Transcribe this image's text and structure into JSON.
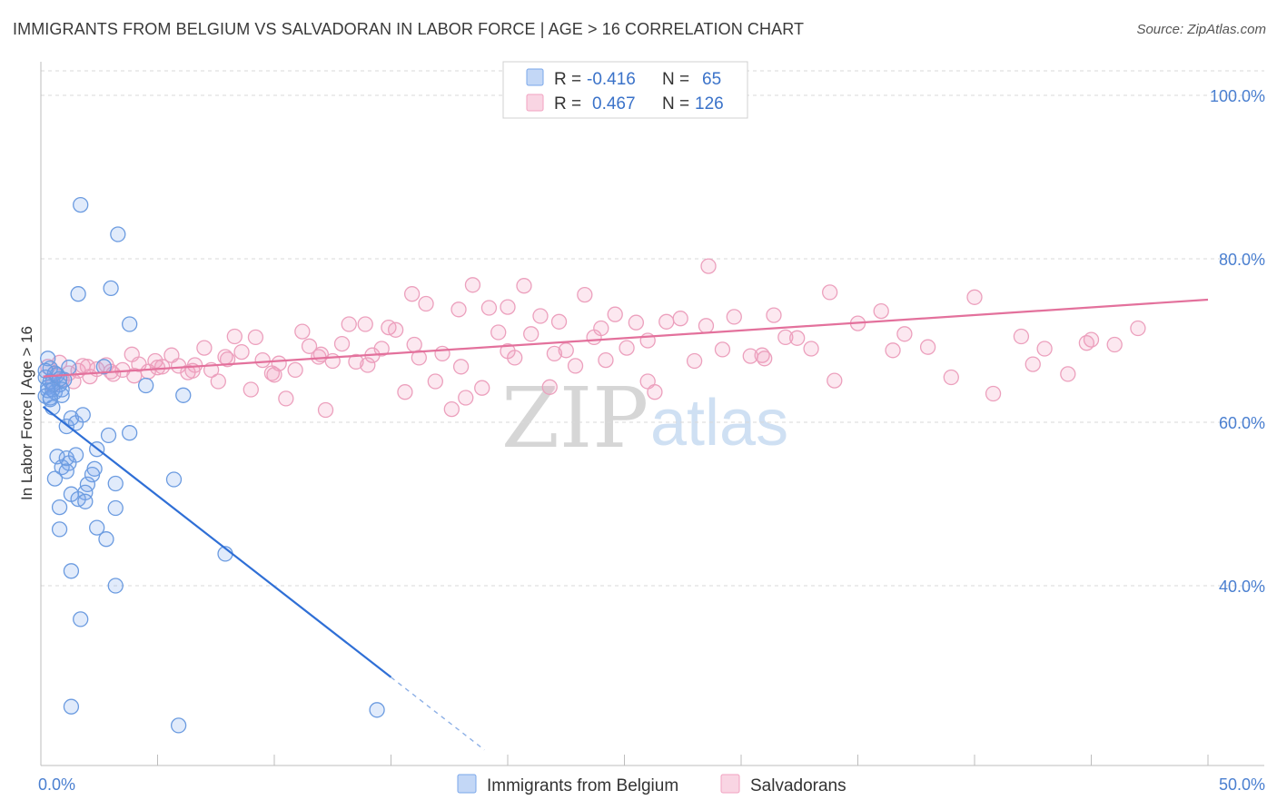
{
  "title": "IMMIGRANTS FROM BELGIUM VS SALVADORAN IN LABOR FORCE | AGE > 16 CORRELATION CHART",
  "source": "Source: ZipAtlas.com",
  "watermark": {
    "zip": "ZIP",
    "atlas": "atlas"
  },
  "legend_top": {
    "r_label": "R =",
    "n_label": "N =",
    "rows": [
      {
        "r": "-0.416",
        "n": "65",
        "color": "#7aa7ea"
      },
      {
        "r": "0.467",
        "n": "126",
        "color": "#f2a2c0"
      }
    ]
  },
  "chart_data": {
    "type": "scatter",
    "title": "IMMIGRANTS FROM BELGIUM VS SALVADORAN IN LABOR FORCE | AGE > 16 CORRELATION CHART",
    "xlabel": "",
    "ylabel": "In Labor Force | Age > 16",
    "xlim": [
      0,
      50
    ],
    "ylim": [
      18,
      103
    ],
    "x_tick_labels": [
      "0.0%",
      "50.0%"
    ],
    "y_ticks": [
      40,
      60,
      80,
      100
    ],
    "y_tick_labels": [
      "40.0%",
      "60.0%",
      "80.0%",
      "100.0%"
    ],
    "grid": true,
    "legend_position": "bottom",
    "series": [
      {
        "name": "Immigrants from Belgium",
        "color": "#6b9be0",
        "trend": {
          "x0": 0.1,
          "y0": 61.9,
          "x1": 15.0,
          "y1": 28.8,
          "dash_to_x": 19.0
        },
        "points": [
          [
            0.3,
            67.8
          ],
          [
            0.4,
            66.6
          ],
          [
            0.2,
            65.5
          ],
          [
            0.5,
            64.9
          ],
          [
            0.3,
            64.3
          ],
          [
            0.6,
            63.7
          ],
          [
            0.2,
            63.2
          ],
          [
            0.4,
            62.8
          ],
          [
            0.8,
            64.6
          ],
          [
            1.0,
            65.2
          ],
          [
            0.9,
            64.0
          ],
          [
            0.5,
            61.8
          ],
          [
            1.1,
            59.5
          ],
          [
            1.3,
            60.5
          ],
          [
            1.5,
            59.9
          ],
          [
            1.8,
            60.9
          ],
          [
            0.7,
            55.8
          ],
          [
            1.2,
            55.0
          ],
          [
            0.9,
            54.5
          ],
          [
            1.1,
            55.6
          ],
          [
            1.5,
            56.0
          ],
          [
            1.1,
            54.0
          ],
          [
            0.6,
            53.1
          ],
          [
            2.4,
            56.7
          ],
          [
            2.3,
            54.3
          ],
          [
            2.2,
            53.6
          ],
          [
            2.0,
            52.4
          ],
          [
            1.9,
            51.4
          ],
          [
            1.3,
            51.2
          ],
          [
            1.6,
            50.6
          ],
          [
            1.9,
            50.3
          ],
          [
            0.8,
            49.6
          ],
          [
            2.4,
            47.1
          ],
          [
            2.8,
            45.7
          ],
          [
            0.8,
            46.9
          ],
          [
            1.3,
            41.8
          ],
          [
            3.2,
            49.5
          ],
          [
            3.2,
            52.5
          ],
          [
            5.7,
            53.0
          ],
          [
            7.9,
            43.9
          ],
          [
            3.2,
            40.0
          ],
          [
            1.7,
            35.9
          ],
          [
            1.3,
            25.2
          ],
          [
            5.9,
            22.9
          ],
          [
            14.4,
            24.8
          ],
          [
            1.7,
            86.6
          ],
          [
            3.3,
            83.0
          ],
          [
            1.6,
            75.7
          ],
          [
            3.0,
            76.4
          ],
          [
            3.8,
            72.0
          ],
          [
            4.5,
            64.5
          ],
          [
            6.1,
            63.3
          ],
          [
            3.8,
            58.7
          ],
          [
            2.9,
            58.4
          ],
          [
            2.7,
            66.8
          ],
          [
            1.2,
            66.7
          ],
          [
            0.4,
            65.0
          ],
          [
            0.7,
            65.8
          ],
          [
            0.3,
            63.9
          ],
          [
            0.6,
            66.0
          ],
          [
            0.8,
            65.3
          ],
          [
            0.2,
            66.3
          ],
          [
            0.5,
            64.0
          ],
          [
            0.9,
            63.3
          ],
          [
            0.4,
            63.0
          ]
        ]
      },
      {
        "name": "Salvadorans",
        "color": "#eca0bd",
        "trend": {
          "x0": 0.1,
          "y0": 65.6,
          "x1": 50.0,
          "y1": 75.0
        },
        "points": [
          [
            0.3,
            66.8
          ],
          [
            0.6,
            65.9
          ],
          [
            0.9,
            65.2
          ],
          [
            1.2,
            66.0
          ],
          [
            1.6,
            66.3
          ],
          [
            1.8,
            66.9
          ],
          [
            2.1,
            65.6
          ],
          [
            2.4,
            66.5
          ],
          [
            2.8,
            67.0
          ],
          [
            3.1,
            65.9
          ],
          [
            3.5,
            66.4
          ],
          [
            3.9,
            68.3
          ],
          [
            4.2,
            67.1
          ],
          [
            4.6,
            66.2
          ],
          [
            4.9,
            67.5
          ],
          [
            5.2,
            66.8
          ],
          [
            5.6,
            68.2
          ],
          [
            5.9,
            66.9
          ],
          [
            6.3,
            66.1
          ],
          [
            6.6,
            67.0
          ],
          [
            7.0,
            69.1
          ],
          [
            7.3,
            66.4
          ],
          [
            7.6,
            65.0
          ],
          [
            7.9,
            68.0
          ],
          [
            8.3,
            70.5
          ],
          [
            8.6,
            68.6
          ],
          [
            9.0,
            64.0
          ],
          [
            9.2,
            70.4
          ],
          [
            9.5,
            67.6
          ],
          [
            9.9,
            66.0
          ],
          [
            10.2,
            67.2
          ],
          [
            10.5,
            62.9
          ],
          [
            10.9,
            66.4
          ],
          [
            11.2,
            71.1
          ],
          [
            11.5,
            69.3
          ],
          [
            11.9,
            68.0
          ],
          [
            12.2,
            61.5
          ],
          [
            12.5,
            67.5
          ],
          [
            12.9,
            69.6
          ],
          [
            13.2,
            72.0
          ],
          [
            13.5,
            67.4
          ],
          [
            13.9,
            72.0
          ],
          [
            14.2,
            68.2
          ],
          [
            14.6,
            69.0
          ],
          [
            14.9,
            71.6
          ],
          [
            15.2,
            71.3
          ],
          [
            15.6,
            63.7
          ],
          [
            15.9,
            75.7
          ],
          [
            16.2,
            67.9
          ],
          [
            16.5,
            74.5
          ],
          [
            16.9,
            65.0
          ],
          [
            17.2,
            68.4
          ],
          [
            17.6,
            61.6
          ],
          [
            17.9,
            73.8
          ],
          [
            18.2,
            63.0
          ],
          [
            18.5,
            76.8
          ],
          [
            18.9,
            64.2
          ],
          [
            19.2,
            74.0
          ],
          [
            19.6,
            71.0
          ],
          [
            20.0,
            74.1
          ],
          [
            20.3,
            67.9
          ],
          [
            20.7,
            76.7
          ],
          [
            21.0,
            70.8
          ],
          [
            21.4,
            73.0
          ],
          [
            21.8,
            64.3
          ],
          [
            22.2,
            72.3
          ],
          [
            22.5,
            68.8
          ],
          [
            22.9,
            66.9
          ],
          [
            23.3,
            75.6
          ],
          [
            23.7,
            70.4
          ],
          [
            24.2,
            67.6
          ],
          [
            24.6,
            73.2
          ],
          [
            25.1,
            69.1
          ],
          [
            25.5,
            72.2
          ],
          [
            26.0,
            65.0
          ],
          [
            26.3,
            63.7
          ],
          [
            26.8,
            72.3
          ],
          [
            27.4,
            72.7
          ],
          [
            28.0,
            67.5
          ],
          [
            28.6,
            79.1
          ],
          [
            29.2,
            68.9
          ],
          [
            29.7,
            72.9
          ],
          [
            30.4,
            68.1
          ],
          [
            30.9,
            68.2
          ],
          [
            31.4,
            73.1
          ],
          [
            31.9,
            70.4
          ],
          [
            32.4,
            70.3
          ],
          [
            33.0,
            69.0
          ],
          [
            33.8,
            75.9
          ],
          [
            34.0,
            65.1
          ],
          [
            35.0,
            72.1
          ],
          [
            36.0,
            73.6
          ],
          [
            37.0,
            70.8
          ],
          [
            38.0,
            69.2
          ],
          [
            39.0,
            65.5
          ],
          [
            40.0,
            75.3
          ],
          [
            40.8,
            63.5
          ],
          [
            42.0,
            70.5
          ],
          [
            42.5,
            67.1
          ],
          [
            43.0,
            69.0
          ],
          [
            44.0,
            65.9
          ],
          [
            45.0,
            70.1
          ],
          [
            46.0,
            69.5
          ],
          [
            47.0,
            71.5
          ],
          [
            0.5,
            64.5
          ],
          [
            0.8,
            67.3
          ],
          [
            1.4,
            65.0
          ],
          [
            2.0,
            66.8
          ],
          [
            3.0,
            66.2
          ],
          [
            4.0,
            65.7
          ],
          [
            5.0,
            66.7
          ],
          [
            6.5,
            66.3
          ],
          [
            8.0,
            67.7
          ],
          [
            10.0,
            65.8
          ],
          [
            12.0,
            68.3
          ],
          [
            14.0,
            67.0
          ],
          [
            16.0,
            69.5
          ],
          [
            18.0,
            66.8
          ],
          [
            20.0,
            68.7
          ],
          [
            22.0,
            68.4
          ],
          [
            24.0,
            71.5
          ],
          [
            26.0,
            70.0
          ],
          [
            28.5,
            71.8
          ],
          [
            31.0,
            67.8
          ],
          [
            36.5,
            68.8
          ],
          [
            44.8,
            69.7
          ]
        ]
      }
    ]
  }
}
